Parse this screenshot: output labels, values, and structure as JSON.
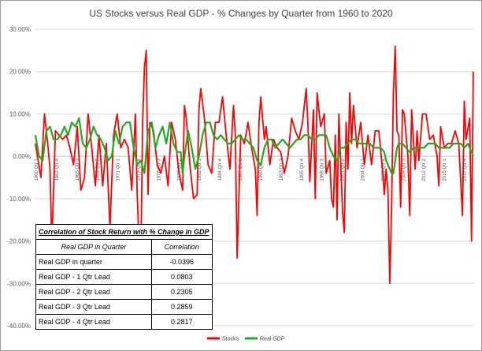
{
  "chart_data": {
    "type": "line",
    "title": "US Stocks versus Real GDP - % Changes by Quarter from 1960 to 2020",
    "xlabel": "",
    "ylabel": "",
    "ylim": [
      -0.4,
      0.3
    ],
    "y_ticks": [
      "30.00%",
      "20.00%",
      "10.00%",
      "0.00%",
      "-10.00%",
      "-20.00%",
      "-30.00%",
      "-40.00%"
    ],
    "x_tick_labels": [
      "1960 Qtr 1",
      "1962 Qtr 4",
      "1965 Qtr 3",
      "1968 Qtr 2",
      "1971 Qtr 1",
      "1973 Qtr 4",
      "1976 Qtr 3",
      "1979 Qtr 2",
      "1982 Qtr 1",
      "1984 Qtr 4",
      "1987 Qtr 3",
      "1990 Qtr 2",
      "1993 Qtr 1",
      "1995 Qtr 4",
      "1998 Qtr 3",
      "2001 Qtr 2",
      "2004 Qtr 1",
      "2006 Qtr 4",
      "2009 Qtr 3",
      "2012 Qtr 2",
      "2015 Qtr 1",
      "2017 Qtr 4"
    ],
    "x_range": [
      1960.0,
      2020.25
    ],
    "grid": true,
    "legend": "bottom-right",
    "series": [
      {
        "name": "Stocks",
        "color": "#ff0000",
        "points": [
          [
            1960.0,
            0.03
          ],
          [
            1960.75,
            -0.05
          ],
          [
            1961.25,
            0.1
          ],
          [
            1961.75,
            0.02
          ],
          [
            1962.0,
            -0.03
          ],
          [
            1962.25,
            -0.21
          ],
          [
            1962.75,
            0.06
          ],
          [
            1963.25,
            0.05
          ],
          [
            1963.75,
            0.04
          ],
          [
            1964.25,
            0.05
          ],
          [
            1964.75,
            0.02
          ],
          [
            1965.25,
            -0.02
          ],
          [
            1965.75,
            0.07
          ],
          [
            1966.25,
            -0.08
          ],
          [
            1966.75,
            -0.05
          ],
          [
            1967.25,
            0.1
          ],
          [
            1967.75,
            0.02
          ],
          [
            1968.25,
            -0.07
          ],
          [
            1968.75,
            0.05
          ],
          [
            1969.25,
            -0.07
          ],
          [
            1969.75,
            0.03
          ],
          [
            1970.25,
            -0.17
          ],
          [
            1970.75,
            0.05
          ],
          [
            1971.25,
            0.1
          ],
          [
            1971.75,
            0.02
          ],
          [
            1972.25,
            0.04
          ],
          [
            1972.75,
            0.02
          ],
          [
            1973.25,
            -0.08
          ],
          [
            1973.75,
            0.1
          ],
          [
            1974.0,
            -0.09
          ],
          [
            1974.25,
            -0.2
          ],
          [
            1974.5,
            -0.25
          ],
          [
            1974.75,
            0.08
          ],
          [
            1975.0,
            0.21
          ],
          [
            1975.25,
            0.25
          ],
          [
            1975.5,
            -0.09
          ],
          [
            1975.75,
            0.08
          ],
          [
            1976.25,
            0.06
          ],
          [
            1976.75,
            -0.02
          ],
          [
            1977.25,
            -0.04
          ],
          [
            1977.75,
            0.0
          ],
          [
            1978.25,
            -0.07
          ],
          [
            1978.75,
            0.08
          ],
          [
            1979.25,
            0.04
          ],
          [
            1979.75,
            -0.04
          ],
          [
            1980.25,
            -0.08
          ],
          [
            1980.5,
            0.12
          ],
          [
            1980.75,
            0.09
          ],
          [
            1981.25,
            -0.02
          ],
          [
            1981.75,
            -0.1
          ],
          [
            1982.25,
            -0.09
          ],
          [
            1982.5,
            0.11
          ],
          [
            1982.75,
            0.16
          ],
          [
            1983.25,
            0.09
          ],
          [
            1983.75,
            -0.02
          ],
          [
            1984.25,
            -0.04
          ],
          [
            1984.75,
            0.08
          ],
          [
            1985.25,
            0.08
          ],
          [
            1985.75,
            0.14
          ],
          [
            1986.25,
            0.05
          ],
          [
            1986.75,
            -0.03
          ],
          [
            1987.25,
            0.12
          ],
          [
            1987.5,
            0.05
          ],
          [
            1987.75,
            -0.24
          ],
          [
            1988.25,
            0.05
          ],
          [
            1988.75,
            0.03
          ],
          [
            1989.25,
            0.08
          ],
          [
            1989.75,
            0.02
          ],
          [
            1990.25,
            -0.03
          ],
          [
            1990.5,
            -0.14
          ],
          [
            1990.75,
            0.08
          ],
          [
            1991.0,
            0.14
          ],
          [
            1991.5,
            0.04
          ],
          [
            1991.75,
            0.07
          ],
          [
            1992.25,
            -0.02
          ],
          [
            1992.75,
            0.04
          ],
          [
            1993.25,
            0.02
          ],
          [
            1993.75,
            0.01
          ],
          [
            1994.25,
            -0.04
          ],
          [
            1994.75,
            0.0
          ],
          [
            1995.25,
            0.09
          ],
          [
            1995.75,
            0.06
          ],
          [
            1996.25,
            0.04
          ],
          [
            1996.75,
            0.08
          ],
          [
            1997.25,
            0.16
          ],
          [
            1997.5,
            0.07
          ],
          [
            1997.75,
            -0.06
          ],
          [
            1998.25,
            0.11
          ],
          [
            1998.5,
            -0.1
          ],
          [
            1998.75,
            0.15
          ],
          [
            1999.25,
            0.07
          ],
          [
            1999.75,
            0.1
          ],
          [
            2000.0,
            -0.04
          ],
          [
            2000.5,
            -0.01
          ],
          [
            2000.75,
            -0.1
          ],
          [
            2001.0,
            -0.12
          ],
          [
            2001.25,
            0.05
          ],
          [
            2001.5,
            -0.15
          ],
          [
            2001.75,
            0.1
          ],
          [
            2002.25,
            -0.13
          ],
          [
            2002.5,
            -0.18
          ],
          [
            2002.75,
            0.08
          ],
          [
            2003.0,
            -0.03
          ],
          [
            2003.25,
            0.15
          ],
          [
            2003.5,
            0.03
          ],
          [
            2003.75,
            0.12
          ],
          [
            2004.25,
            0.02
          ],
          [
            2004.75,
            0.08
          ],
          [
            2005.25,
            -0.02
          ],
          [
            2005.75,
            0.05
          ],
          [
            2006.25,
            -0.02
          ],
          [
            2006.75,
            0.06
          ],
          [
            2007.25,
            0.06
          ],
          [
            2007.75,
            -0.03
          ],
          [
            2008.0,
            -0.09
          ],
          [
            2008.25,
            -0.03
          ],
          [
            2008.5,
            -0.08
          ],
          [
            2008.75,
            -0.3
          ],
          [
            2009.0,
            -0.12
          ],
          [
            2009.25,
            0.15
          ],
          [
            2009.5,
            0.26
          ],
          [
            2009.75,
            0.06
          ],
          [
            2010.0,
            0.05
          ],
          [
            2010.25,
            -0.12
          ],
          [
            2010.5,
            0.11
          ],
          [
            2010.75,
            0.1
          ],
          [
            2011.25,
            0.0
          ],
          [
            2011.5,
            -0.14
          ],
          [
            2011.75,
            0.11
          ],
          [
            2012.25,
            -0.03
          ],
          [
            2012.5,
            0.06
          ],
          [
            2012.75,
            -0.01
          ],
          [
            2013.25,
            0.1
          ],
          [
            2013.75,
            0.1
          ],
          [
            2014.25,
            0.04
          ],
          [
            2014.75,
            0.05
          ],
          [
            2015.25,
            0.0
          ],
          [
            2015.5,
            -0.07
          ],
          [
            2015.75,
            0.07
          ],
          [
            2016.25,
            0.02
          ],
          [
            2016.75,
            0.03
          ],
          [
            2017.25,
            0.03
          ],
          [
            2017.75,
            0.06
          ],
          [
            2018.25,
            0.03
          ],
          [
            2018.75,
            -0.14
          ],
          [
            2019.0,
            0.13
          ],
          [
            2019.25,
            0.04
          ],
          [
            2019.75,
            0.09
          ],
          [
            2020.0,
            -0.2
          ],
          [
            2020.25,
            0.2
          ]
        ]
      },
      {
        "name": "Real GDP",
        "color": "#22a822",
        "points": [
          [
            1960.0,
            0.05
          ],
          [
            1960.5,
            0.0
          ],
          [
            1961.0,
            -0.01
          ],
          [
            1961.5,
            0.06
          ],
          [
            1962.0,
            0.07
          ],
          [
            1962.5,
            0.04
          ],
          [
            1963.0,
            0.04
          ],
          [
            1963.5,
            0.05
          ],
          [
            1964.0,
            0.07
          ],
          [
            1964.5,
            0.05
          ],
          [
            1965.0,
            0.08
          ],
          [
            1965.5,
            0.07
          ],
          [
            1966.0,
            0.09
          ],
          [
            1966.5,
            0.03
          ],
          [
            1967.0,
            0.02
          ],
          [
            1967.5,
            0.04
          ],
          [
            1968.0,
            0.07
          ],
          [
            1968.5,
            0.05
          ],
          [
            1969.0,
            0.04
          ],
          [
            1969.5,
            0.02
          ],
          [
            1970.0,
            -0.01
          ],
          [
            1970.5,
            0.0
          ],
          [
            1971.0,
            0.06
          ],
          [
            1971.5,
            0.03
          ],
          [
            1972.0,
            0.07
          ],
          [
            1972.5,
            0.08
          ],
          [
            1973.0,
            0.08
          ],
          [
            1973.5,
            0.02
          ],
          [
            1974.0,
            -0.02
          ],
          [
            1974.5,
            -0.01
          ],
          [
            1975.0,
            -0.04
          ],
          [
            1975.5,
            0.06
          ],
          [
            1976.0,
            0.08
          ],
          [
            1976.5,
            0.02
          ],
          [
            1977.0,
            0.05
          ],
          [
            1977.5,
            0.07
          ],
          [
            1978.0,
            0.03
          ],
          [
            1978.5,
            0.08
          ],
          [
            1979.0,
            0.03
          ],
          [
            1979.5,
            0.01
          ],
          [
            1980.0,
            0.01
          ],
          [
            1980.25,
            -0.04
          ],
          [
            1980.5,
            0.0
          ],
          [
            1981.0,
            0.06
          ],
          [
            1981.5,
            0.02
          ],
          [
            1982.0,
            -0.03
          ],
          [
            1982.5,
            0.0
          ],
          [
            1983.0,
            0.05
          ],
          [
            1983.5,
            0.08
          ],
          [
            1984.0,
            0.08
          ],
          [
            1984.5,
            0.05
          ],
          [
            1985.0,
            0.04
          ],
          [
            1985.5,
            0.05
          ],
          [
            1986.0,
            0.04
          ],
          [
            1986.5,
            0.03
          ],
          [
            1987.0,
            0.03
          ],
          [
            1987.5,
            0.04
          ],
          [
            1988.0,
            0.05
          ],
          [
            1988.5,
            0.04
          ],
          [
            1989.0,
            0.04
          ],
          [
            1989.5,
            0.03
          ],
          [
            1990.0,
            0.02
          ],
          [
            1990.5,
            -0.01
          ],
          [
            1991.0,
            -0.02
          ],
          [
            1991.5,
            0.02
          ],
          [
            1992.0,
            0.04
          ],
          [
            1992.5,
            0.04
          ],
          [
            1993.0,
            0.02
          ],
          [
            1993.5,
            0.03
          ],
          [
            1994.0,
            0.04
          ],
          [
            1994.5,
            0.03
          ],
          [
            1995.0,
            0.02
          ],
          [
            1995.5,
            0.03
          ],
          [
            1996.0,
            0.04
          ],
          [
            1996.5,
            0.04
          ],
          [
            1997.0,
            0.05
          ],
          [
            1997.5,
            0.05
          ],
          [
            1998.0,
            0.04
          ],
          [
            1998.5,
            0.04
          ],
          [
            1999.0,
            0.05
          ],
          [
            1999.5,
            0.05
          ],
          [
            2000.0,
            0.05
          ],
          [
            2000.5,
            0.02
          ],
          [
            2001.0,
            0.0
          ],
          [
            2001.5,
            -0.01
          ],
          [
            2002.0,
            0.02
          ],
          [
            2002.5,
            0.02
          ],
          [
            2003.0,
            0.03
          ],
          [
            2003.5,
            0.04
          ],
          [
            2004.0,
            0.04
          ],
          [
            2004.5,
            0.03
          ],
          [
            2005.0,
            0.03
          ],
          [
            2005.5,
            0.03
          ],
          [
            2006.0,
            0.03
          ],
          [
            2006.5,
            0.02
          ],
          [
            2007.0,
            0.02
          ],
          [
            2007.5,
            0.02
          ],
          [
            2008.0,
            0.01
          ],
          [
            2008.25,
            -0.01
          ],
          [
            2008.5,
            -0.02
          ],
          [
            2008.75,
            -0.03
          ],
          [
            2009.0,
            -0.04
          ],
          [
            2009.25,
            -0.04
          ],
          [
            2009.5,
            -0.01
          ],
          [
            2009.75,
            0.02
          ],
          [
            2010.0,
            0.03
          ],
          [
            2010.5,
            0.03
          ],
          [
            2011.0,
            0.02
          ],
          [
            2011.5,
            0.01
          ],
          [
            2012.0,
            0.02
          ],
          [
            2012.5,
            0.02
          ],
          [
            2013.0,
            0.02
          ],
          [
            2013.5,
            0.02
          ],
          [
            2014.0,
            0.03
          ],
          [
            2014.5,
            0.03
          ],
          [
            2015.0,
            0.03
          ],
          [
            2015.5,
            0.02
          ],
          [
            2016.0,
            0.02
          ],
          [
            2016.5,
            0.02
          ],
          [
            2017.0,
            0.02
          ],
          [
            2017.5,
            0.03
          ],
          [
            2018.0,
            0.03
          ],
          [
            2018.5,
            0.03
          ],
          [
            2019.0,
            0.02
          ],
          [
            2019.5,
            0.03
          ],
          [
            2019.75,
            0.02
          ],
          [
            2020.0,
            0.01
          ],
          [
            2020.25,
            0.0
          ]
        ]
      }
    ]
  },
  "correlation_table": {
    "title": "Correlation of Stock Return with % Change in GDP",
    "col_headers": [
      "Real GDP in Quarter",
      "Correlation"
    ],
    "rows": [
      {
        "label": "Real GDP in quarter",
        "value": "-0.0396"
      },
      {
        "label": "Real GDP - 1 Qtr Lead",
        "value": "0.0803"
      },
      {
        "label": "Real GDP - 2 Qtr Lead",
        "value": "0.2305"
      },
      {
        "label": "Real GDP - 3 Qtr Lead",
        "value": "0.2859"
      },
      {
        "label": "Real GDP - 4 Qtr Lead",
        "value": "0.2817"
      }
    ]
  }
}
